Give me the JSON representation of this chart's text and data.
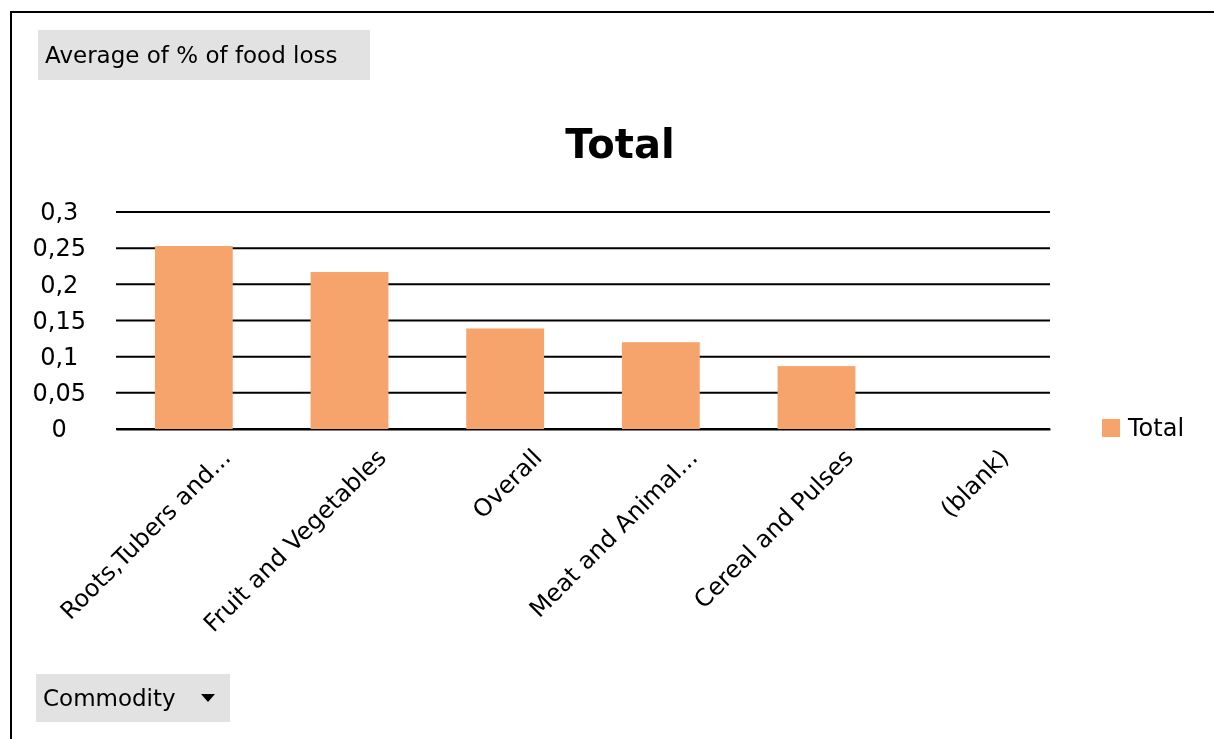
{
  "chart_data": {
    "type": "bar",
    "title": "Total",
    "categories": [
      "Roots,Tubers and...",
      "Fruit and Vegetables",
      "Overall",
      "Meat and Animal...",
      "Cereal and Pulses",
      "(blank)"
    ],
    "series": [
      {
        "name": "Total",
        "color": "#f6a46c",
        "values": [
          0.253,
          0.217,
          0.139,
          0.12,
          0.087,
          null
        ]
      }
    ],
    "ylim": [
      0,
      0.3
    ],
    "yticks": [
      {
        "value": 0,
        "label": "0"
      },
      {
        "value": 0.05,
        "label": "0,05"
      },
      {
        "value": 0.1,
        "label": "0,1"
      },
      {
        "value": 0.15,
        "label": "0,15"
      },
      {
        "value": 0.2,
        "label": "0,2"
      },
      {
        "value": 0.25,
        "label": "0,25"
      },
      {
        "value": 0.3,
        "label": "0,3"
      }
    ],
    "grid": "y",
    "legend": "right",
    "annotations": [
      "Average of % of food loss",
      "Commodity"
    ]
  }
}
